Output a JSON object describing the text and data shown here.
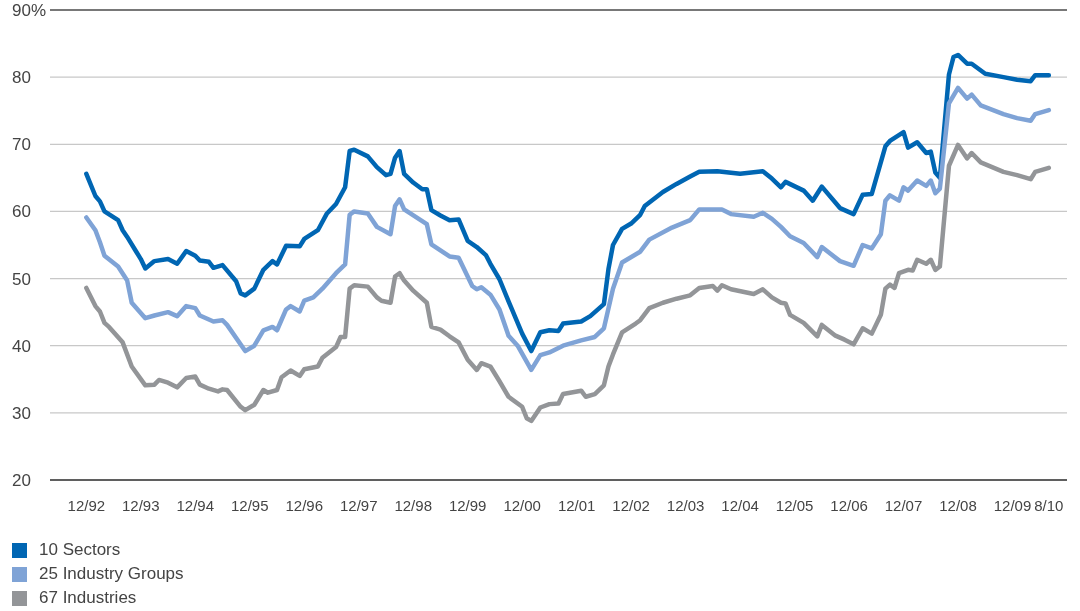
{
  "chart_data": {
    "type": "line",
    "xlim": [
      "1992-04",
      "2010-12"
    ],
    "xticks": [
      {
        "value": "1992-12",
        "label": "12/92"
      },
      {
        "value": "1993-12",
        "label": "12/93"
      },
      {
        "value": "1994-12",
        "label": "12/94"
      },
      {
        "value": "1995-12",
        "label": "12/95"
      },
      {
        "value": "1996-12",
        "label": "12/96"
      },
      {
        "value": "1997-12",
        "label": "12/97"
      },
      {
        "value": "1998-12",
        "label": "12/98"
      },
      {
        "value": "1999-12",
        "label": "12/99"
      },
      {
        "value": "2000-12",
        "label": "12/00"
      },
      {
        "value": "2001-12",
        "label": "12/01"
      },
      {
        "value": "2002-12",
        "label": "12/02"
      },
      {
        "value": "2003-12",
        "label": "12/03"
      },
      {
        "value": "2004-12",
        "label": "12/04"
      },
      {
        "value": "2005-12",
        "label": "12/05"
      },
      {
        "value": "2006-12",
        "label": "12/06"
      },
      {
        "value": "2007-12",
        "label": "12/07"
      },
      {
        "value": "2008-12",
        "label": "12/08"
      },
      {
        "value": "2009-12",
        "label": "12/09"
      },
      {
        "value": "2010-08",
        "label": "8/10"
      }
    ],
    "ylim": [
      20,
      90
    ],
    "yticks": [
      20,
      30,
      40,
      50,
      60,
      70,
      80,
      {
        "value": 90,
        "label": "90%"
      }
    ],
    "grid": "y",
    "legend": "bottom",
    "series": [
      {
        "name": "10 Sectors",
        "color": "#0066b3",
        "x": [
          "1992-12",
          "1993-02",
          "1993-03",
          "1993-04",
          "1993-07",
          "1993-08",
          "1993-09",
          "1993-11",
          "1993-12",
          "1994-01",
          "1994-03",
          "1994-06",
          "1994-08",
          "1994-10",
          "1994-12",
          "1995-01",
          "1995-03",
          "1995-04",
          "1995-06",
          "1995-09",
          "1995-10",
          "1995-11",
          "1996-01",
          "1996-03",
          "1996-05",
          "1996-06",
          "1996-08",
          "1996-11",
          "1996-12",
          "1997-03",
          "1997-05",
          "1997-07",
          "1997-09",
          "1997-10",
          "1997-11",
          "1998-02",
          "1998-04",
          "1998-06",
          "1998-07",
          "1998-08",
          "1998-09",
          "1998-10",
          "1998-12",
          "1999-02",
          "1999-03",
          "1999-04",
          "1999-06",
          "1999-08",
          "1999-10",
          "1999-12",
          "2000-02",
          "2000-04",
          "2000-05",
          "2000-07",
          "2000-09",
          "2000-12",
          "2001-02",
          "2001-04",
          "2001-06",
          "2001-08",
          "2001-09",
          "2002-01",
          "2002-03",
          "2002-06",
          "2002-07",
          "2002-08",
          "2002-10",
          "2002-12",
          "2003-02",
          "2003-03",
          "2003-07",
          "2003-10",
          "2004-01",
          "2004-03",
          "2004-07",
          "2004-12",
          "2005-05",
          "2005-07",
          "2005-09",
          "2005-10",
          "2006-02",
          "2006-04",
          "2006-06",
          "2006-10",
          "2007-01",
          "2007-03",
          "2007-05",
          "2007-08",
          "2007-09",
          "2007-12",
          "2008-01",
          "2008-03",
          "2008-05",
          "2008-06",
          "2008-07",
          "2008-08",
          "2008-10",
          "2008-11",
          "2008-12",
          "2009-02",
          "2009-03",
          "2009-06",
          "2009-10",
          "2010-01",
          "2010-04",
          "2010-05",
          "2010-08"
        ],
        "values": [
          65.6,
          62.3,
          61.5,
          60,
          58.7,
          57.2,
          56.2,
          54,
          52.9,
          51.5,
          52.6,
          52.9,
          52.2,
          54.1,
          53.4,
          52.7,
          52.5,
          51.6,
          52,
          49.6,
          47.8,
          47.5,
          48.5,
          51.3,
          52.6,
          52.1,
          54.9,
          54.8,
          55.9,
          57.2,
          59.7,
          61.1,
          63.6,
          69,
          69.2,
          68.2,
          66.6,
          65.4,
          65.6,
          68,
          69,
          65.6,
          64.3,
          63.3,
          63.3,
          60.2,
          59.4,
          58.7,
          58.8,
          55.6,
          54.7,
          53.5,
          52.2,
          49.9,
          46.6,
          41.8,
          39.2,
          42,
          42.3,
          42.2,
          43.3,
          43.6,
          44.4,
          46.2,
          51.4,
          55,
          57.4,
          58.2,
          59.5,
          60.8,
          62.9,
          64.1,
          65.2,
          65.9,
          66,
          65.6,
          66,
          64.9,
          63.6,
          64.4,
          63.1,
          61.6,
          63.7,
          60.5,
          59.6,
          62.5,
          62.6,
          69.7,
          70.5,
          71.8,
          69.5,
          70.3,
          68.7,
          68.9,
          65.8,
          65,
          80.4,
          83,
          83.3,
          82,
          82,
          80.5,
          80,
          79.6,
          79.4,
          80.3,
          80.3
        ]
      },
      {
        "name": "25 Industry Groups",
        "color": "#7fa3d6",
        "x": [
          "1992-12",
          "1993-02",
          "1993-03",
          "1993-04",
          "1993-07",
          "1993-09",
          "1993-10",
          "1994-01",
          "1994-03",
          "1994-06",
          "1994-08",
          "1994-10",
          "1994-12",
          "1995-01",
          "1995-04",
          "1995-06",
          "1995-07",
          "1995-11",
          "1996-01",
          "1996-03",
          "1996-05",
          "1996-06",
          "1996-08",
          "1996-09",
          "1996-11",
          "1996-12",
          "1997-02",
          "1997-04",
          "1997-07",
          "1997-09",
          "1997-10",
          "1997-11",
          "1998-02",
          "1998-04",
          "1998-07",
          "1998-08",
          "1998-09",
          "1998-10",
          "1999-03",
          "1999-04",
          "1999-08",
          "1999-10",
          "2000-01",
          "2000-02",
          "2000-03",
          "2000-05",
          "2000-07",
          "2000-09",
          "2000-11",
          "2001-02",
          "2001-04",
          "2001-06",
          "2001-09",
          "2002-01",
          "2002-04",
          "2002-06",
          "2002-08",
          "2002-10",
          "2003-02",
          "2003-04",
          "2003-09",
          "2004-01",
          "2004-03",
          "2004-06",
          "2004-08",
          "2004-10",
          "2005-03",
          "2005-05",
          "2005-07",
          "2005-09",
          "2005-11",
          "2006-02",
          "2006-05",
          "2006-06",
          "2006-10",
          "2007-01",
          "2007-03",
          "2007-05",
          "2007-07",
          "2007-08",
          "2007-09",
          "2007-11",
          "2007-12",
          "2008-01",
          "2008-03",
          "2008-05",
          "2008-06",
          "2008-07",
          "2008-08",
          "2008-10",
          "2008-12",
          "2009-02",
          "2009-03",
          "2009-05",
          "2009-10",
          "2010-01",
          "2010-04",
          "2010-05",
          "2010-08"
        ],
        "values": [
          59.1,
          57.2,
          55.4,
          53.4,
          51.8,
          49.7,
          46.4,
          44.1,
          44.5,
          45,
          44.4,
          45.9,
          45.6,
          44.5,
          43.6,
          43.8,
          43.1,
          39.2,
          40,
          42.3,
          42.8,
          42.3,
          45.4,
          45.9,
          45.1,
          46.7,
          47.2,
          48.5,
          50.8,
          52.1,
          59.5,
          60,
          59.7,
          57.7,
          56.6,
          60.8,
          61.8,
          60.3,
          58.1,
          55.1,
          53.3,
          53.1,
          48.9,
          48.4,
          48.7,
          47.6,
          45.4,
          41.5,
          40,
          36.4,
          38.6,
          39,
          40,
          40.8,
          41.3,
          42.6,
          48.5,
          52.4,
          54,
          55.8,
          57.6,
          58.7,
          60.3,
          60.3,
          60.3,
          59.6,
          59.2,
          59.8,
          58.9,
          57.7,
          56.3,
          55.3,
          53.2,
          54.7,
          52.6,
          51.9,
          55,
          54.5,
          56.6,
          61.6,
          62.4,
          61.6,
          63.6,
          63.1,
          64.6,
          63.8,
          64.6,
          62.7,
          63.4,
          76.1,
          78.4,
          76.8,
          77.4,
          75.8,
          74.5,
          73.9,
          73.5,
          74.5,
          75.1
        ]
      },
      {
        "name": "67 Industries",
        "color": "#939598",
        "x": [
          "1992-12",
          "1993-02",
          "1993-03",
          "1993-04",
          "1993-05",
          "1993-08",
          "1993-10",
          "1994-01",
          "1994-03",
          "1994-04",
          "1994-06",
          "1994-08",
          "1994-10",
          "1994-12",
          "1995-01",
          "1995-03",
          "1995-05",
          "1995-06",
          "1995-07",
          "1995-10",
          "1995-11",
          "1996-01",
          "1996-03",
          "1996-04",
          "1996-06",
          "1996-07",
          "1996-09",
          "1996-11",
          "1996-12",
          "1997-03",
          "1997-04",
          "1997-07",
          "1997-08",
          "1997-09",
          "1997-10",
          "1997-11",
          "1998-02",
          "1998-04",
          "1998-05",
          "1998-07",
          "1998-08",
          "1998-09",
          "1998-10",
          "1998-12",
          "1999-03",
          "1999-04",
          "1999-06",
          "1999-08",
          "1999-10",
          "1999-12",
          "2000-02",
          "2000-03",
          "2000-05",
          "2000-07",
          "2000-09",
          "2000-12",
          "2001-01",
          "2001-02",
          "2001-04",
          "2001-06",
          "2001-08",
          "2001-09",
          "2002-01",
          "2002-02",
          "2002-04",
          "2002-06",
          "2002-07",
          "2002-08",
          "2002-10",
          "2003-01",
          "2003-02",
          "2003-04",
          "2003-07",
          "2003-10",
          "2004-01",
          "2004-03",
          "2004-06",
          "2004-07",
          "2004-08",
          "2004-10",
          "2005-03",
          "2005-05",
          "2005-07",
          "2005-09",
          "2005-10",
          "2005-11",
          "2006-02",
          "2006-05",
          "2006-06",
          "2006-09",
          "2006-11",
          "2007-01",
          "2007-03",
          "2007-05",
          "2007-07",
          "2007-08",
          "2007-09",
          "2007-10",
          "2007-11",
          "2008-01",
          "2008-02",
          "2008-03",
          "2008-05",
          "2008-06",
          "2008-07",
          "2008-08",
          "2008-10",
          "2008-12",
          "2009-02",
          "2009-03",
          "2009-05",
          "2009-10",
          "2010-01",
          "2010-04",
          "2010-05",
          "2010-08"
        ],
        "values": [
          48.6,
          45.9,
          45.1,
          43.4,
          42.8,
          40.5,
          36.9,
          34.1,
          34.2,
          34.9,
          34.5,
          33.8,
          35.2,
          35.4,
          34.2,
          33.6,
          33.2,
          33.5,
          33.4,
          30.9,
          30.4,
          31.2,
          33.4,
          33,
          33.4,
          35.3,
          36.3,
          35.5,
          36.5,
          36.9,
          38.2,
          39.8,
          41.3,
          41.3,
          48.5,
          49,
          48.8,
          47.2,
          46.7,
          46.4,
          50.3,
          50.8,
          49.7,
          48.2,
          46.4,
          42.8,
          42.4,
          41.4,
          40.5,
          37.9,
          36.4,
          37.4,
          36.9,
          34.7,
          32.4,
          30.9,
          29.2,
          28.8,
          30.8,
          31.3,
          31.4,
          32.8,
          33.3,
          32.4,
          32.8,
          34.1,
          36.9,
          38.7,
          42,
          43.3,
          43.8,
          45.6,
          46.4,
          47,
          47.5,
          48.6,
          48.9,
          48.2,
          49,
          48.4,
          47.7,
          48.4,
          47.2,
          46.4,
          46.3,
          44.6,
          43.4,
          41.4,
          43.1,
          41.5,
          40.9,
          40.2,
          42.6,
          41.8,
          44.6,
          48.5,
          49.1,
          48.6,
          50.8,
          51.3,
          51.2,
          52.8,
          52.2,
          52.8,
          51.3,
          51.8,
          66.8,
          69.9,
          67.9,
          68.7,
          67.3,
          65.9,
          65.4,
          64.8,
          65.9,
          66.5
        ]
      }
    ]
  }
}
